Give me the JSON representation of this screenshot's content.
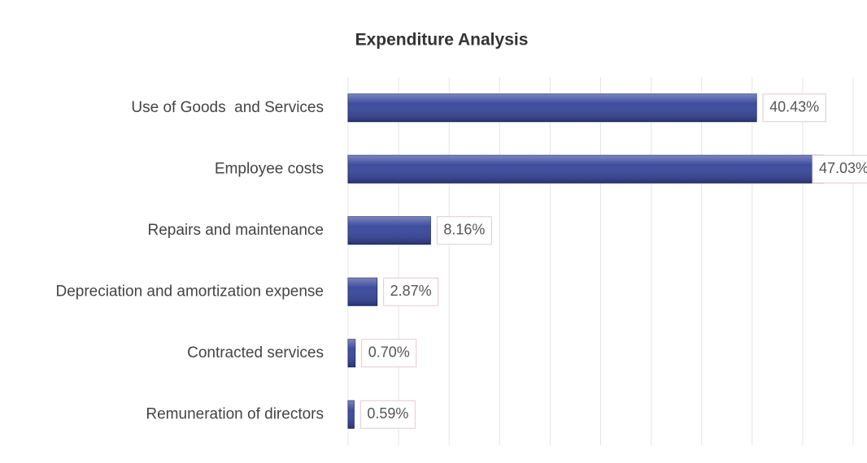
{
  "chart_data": {
    "type": "hbar",
    "title": "Expenditure Analysis",
    "categories": [
      "Use of Goods  and Services",
      "Employee costs",
      "Repairs and maintenance",
      "Depreciation and amortization expense",
      "Contracted services",
      "Remuneration of directors"
    ],
    "values": [
      40.43,
      47.03,
      8.16,
      2.87,
      0.7,
      0.59
    ],
    "value_labels": [
      "40.43%",
      "47.03%",
      "8.16%",
      "2.87%",
      "0.70%",
      "0.59%"
    ],
    "color": "#34449a",
    "xlim": [
      0,
      50
    ],
    "xticks": [
      0,
      5,
      10,
      15,
      20,
      25,
      30,
      35,
      40,
      45,
      50
    ],
    "grid": true
  }
}
